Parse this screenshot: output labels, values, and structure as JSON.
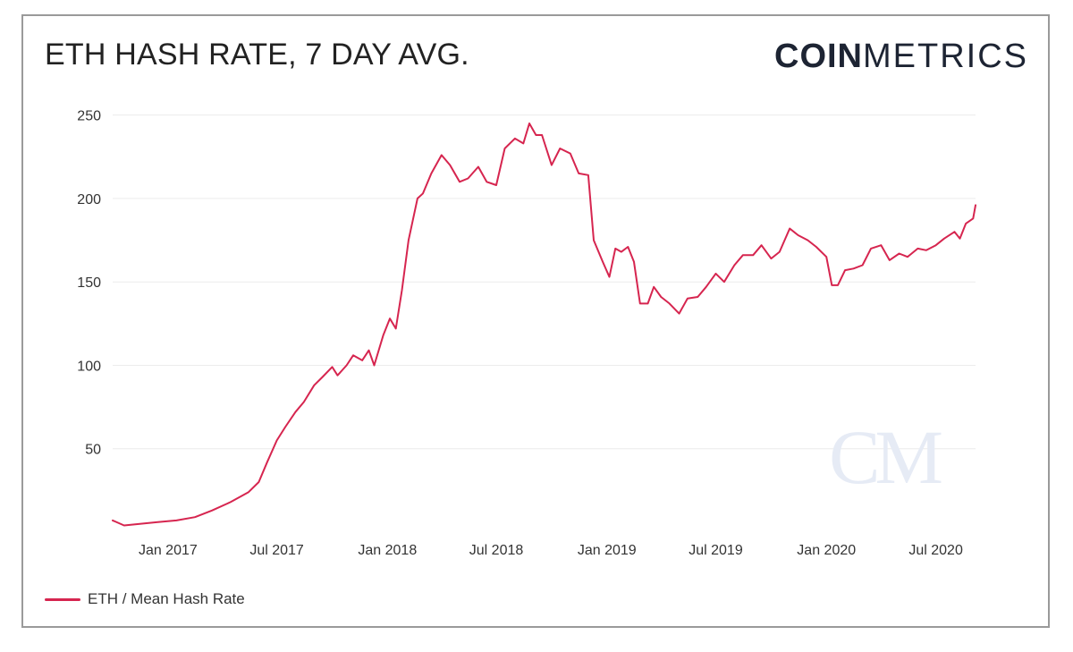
{
  "header": {
    "title": "ETH HASH RATE, 7 DAY AVG.",
    "logo_bold": "COIN",
    "logo_light": "METRICS"
  },
  "colors": {
    "line": "#d6254f",
    "grid": "#ececec",
    "text": "#333333",
    "watermark": "#e6ebf5"
  },
  "chart_data": {
    "type": "line",
    "title": "ETH HASH RATE, 7 DAY AVG.",
    "xlabel": "",
    "ylabel": "",
    "ylim": [
      0,
      260
    ],
    "xlim": [
      "2016-10-01",
      "2020-09-05"
    ],
    "y_ticks": [
      50,
      100,
      150,
      200,
      250
    ],
    "x_ticks": [
      {
        "label": "Jan 2017",
        "date": "2017-01-01"
      },
      {
        "label": "Jul 2017",
        "date": "2017-07-01"
      },
      {
        "label": "Jan 2018",
        "date": "2018-01-01"
      },
      {
        "label": "Jul 2018",
        "date": "2018-07-01"
      },
      {
        "label": "Jan 2019",
        "date": "2019-01-01"
      },
      {
        "label": "Jul 2019",
        "date": "2019-07-01"
      },
      {
        "label": "Jan 2020",
        "date": "2020-01-01"
      },
      {
        "label": "Jul 2020",
        "date": "2020-07-01"
      }
    ],
    "grid": true,
    "legend_position": "bottom-left",
    "watermark": "CM",
    "series": [
      {
        "name": "ETH / Mean Hash Rate",
        "color": "#d6254f",
        "points": [
          [
            "2016-10-01",
            7
          ],
          [
            "2016-10-20",
            4
          ],
          [
            "2016-11-15",
            5
          ],
          [
            "2016-12-15",
            6
          ],
          [
            "2017-01-15",
            7
          ],
          [
            "2017-02-15",
            9
          ],
          [
            "2017-03-15",
            13
          ],
          [
            "2017-04-15",
            18
          ],
          [
            "2017-05-15",
            24
          ],
          [
            "2017-06-01",
            30
          ],
          [
            "2017-06-15",
            42
          ],
          [
            "2017-07-01",
            55
          ],
          [
            "2017-07-15",
            63
          ],
          [
            "2017-08-01",
            72
          ],
          [
            "2017-08-15",
            78
          ],
          [
            "2017-09-01",
            88
          ],
          [
            "2017-09-15",
            93
          ],
          [
            "2017-10-01",
            99
          ],
          [
            "2017-10-10",
            94
          ],
          [
            "2017-10-25",
            100
          ],
          [
            "2017-11-05",
            106
          ],
          [
            "2017-11-20",
            103
          ],
          [
            "2017-12-01",
            109
          ],
          [
            "2017-12-10",
            100
          ],
          [
            "2017-12-25",
            118
          ],
          [
            "2018-01-05",
            128
          ],
          [
            "2018-01-15",
            122
          ],
          [
            "2018-01-25",
            145
          ],
          [
            "2018-02-05",
            175
          ],
          [
            "2018-02-20",
            200
          ],
          [
            "2018-03-01",
            203
          ],
          [
            "2018-03-15",
            215
          ],
          [
            "2018-04-01",
            226
          ],
          [
            "2018-04-15",
            220
          ],
          [
            "2018-05-01",
            210
          ],
          [
            "2018-05-15",
            212
          ],
          [
            "2018-06-01",
            219
          ],
          [
            "2018-06-15",
            210
          ],
          [
            "2018-07-01",
            208
          ],
          [
            "2018-07-15",
            230
          ],
          [
            "2018-08-01",
            236
          ],
          [
            "2018-08-15",
            233
          ],
          [
            "2018-08-25",
            245
          ],
          [
            "2018-09-05",
            238
          ],
          [
            "2018-09-15",
            238
          ],
          [
            "2018-10-01",
            220
          ],
          [
            "2018-10-15",
            230
          ],
          [
            "2018-11-01",
            227
          ],
          [
            "2018-11-15",
            215
          ],
          [
            "2018-12-01",
            214
          ],
          [
            "2018-12-10",
            175
          ],
          [
            "2018-12-25",
            162
          ],
          [
            "2019-01-05",
            153
          ],
          [
            "2019-01-15",
            170
          ],
          [
            "2019-01-25",
            168
          ],
          [
            "2019-02-05",
            171
          ],
          [
            "2019-02-15",
            162
          ],
          [
            "2019-02-25",
            137
          ],
          [
            "2019-03-10",
            137
          ],
          [
            "2019-03-20",
            147
          ],
          [
            "2019-04-01",
            141
          ],
          [
            "2019-04-15",
            137
          ],
          [
            "2019-05-01",
            131
          ],
          [
            "2019-05-15",
            140
          ],
          [
            "2019-06-01",
            141
          ],
          [
            "2019-06-15",
            147
          ],
          [
            "2019-07-01",
            155
          ],
          [
            "2019-07-15",
            150
          ],
          [
            "2019-08-01",
            160
          ],
          [
            "2019-08-15",
            166
          ],
          [
            "2019-09-01",
            166
          ],
          [
            "2019-09-15",
            172
          ],
          [
            "2019-10-01",
            164
          ],
          [
            "2019-10-15",
            168
          ],
          [
            "2019-11-01",
            182
          ],
          [
            "2019-11-15",
            178
          ],
          [
            "2019-12-01",
            175
          ],
          [
            "2019-12-15",
            171
          ],
          [
            "2020-01-01",
            165
          ],
          [
            "2020-01-10",
            148
          ],
          [
            "2020-01-20",
            148
          ],
          [
            "2020-02-01",
            157
          ],
          [
            "2020-02-15",
            158
          ],
          [
            "2020-03-01",
            160
          ],
          [
            "2020-03-15",
            170
          ],
          [
            "2020-04-01",
            172
          ],
          [
            "2020-04-15",
            163
          ],
          [
            "2020-05-01",
            167
          ],
          [
            "2020-05-15",
            165
          ],
          [
            "2020-06-01",
            170
          ],
          [
            "2020-06-15",
            169
          ],
          [
            "2020-07-01",
            172
          ],
          [
            "2020-07-15",
            176
          ],
          [
            "2020-08-01",
            180
          ],
          [
            "2020-08-10",
            176
          ],
          [
            "2020-08-20",
            185
          ],
          [
            "2020-09-01",
            188
          ],
          [
            "2020-09-05",
            196
          ]
        ]
      }
    ]
  }
}
